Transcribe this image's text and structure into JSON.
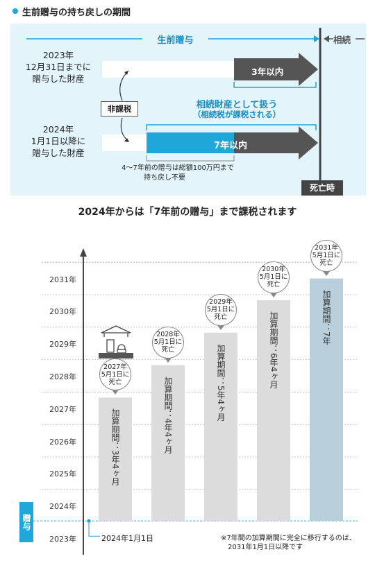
{
  "header": {
    "title": "生前贈与の持ち戻しの期間"
  },
  "diagram": {
    "top_label_gift": "生前贈与",
    "top_label_inherit": "相続",
    "row1_lines": [
      "2023年",
      "12月31日までに",
      "贈与した財産"
    ],
    "row2_lines": [
      "2024年",
      "1月1日以降に",
      "贈与した財産"
    ],
    "row1_arrow_label": "3年以内",
    "row2_arrow_label": "7年以内",
    "non_tax_label": "非課税",
    "inherit_line1": "相続財産として扱う",
    "inherit_line2": "（相続税が課税される）",
    "note_lines": [
      "4～7年前の贈与は総額100万円まで",
      "持ち戻し不要"
    ],
    "death_badge": "死亡時"
  },
  "subtitle": "2024年からは「7年前の贈与」まで課税されます",
  "chart_data": {
    "type": "bar",
    "y_ticks": [
      "2023年",
      "2024年",
      "2025年",
      "2026年",
      "2027年",
      "2028年",
      "2029年",
      "2030年",
      "2031年"
    ],
    "ylim": [
      2023,
      2031.5
    ],
    "start_value": 2024,
    "start_label": "2024年1月1日",
    "bars": [
      {
        "end": 2027.33,
        "bubble": "2027年\n5月1日に\n死亡",
        "label": "加算期間：3年4ヶ月",
        "color": "#dcdcdc"
      },
      {
        "end": 2028.33,
        "bubble": "2028年\n5月1日に\n死亡",
        "label": "加算期間：4年4ヶ月",
        "color": "#dcdcdc"
      },
      {
        "end": 2029.33,
        "bubble": "2029年\n5月1日に\n死亡",
        "label": "加算期間：5年4ヶ月",
        "color": "#dcdcdc"
      },
      {
        "end": 2030.33,
        "bubble": "2030年\n5月1日に\n死亡",
        "label": "加算期間：6年4ヶ月",
        "color": "#dcdcdc"
      },
      {
        "end": 2031.0,
        "bubble": "2031年\n5月1日に\n死亡",
        "label": "加算期間：7年",
        "color": "#b9cfdc"
      }
    ],
    "side_label": "贈与",
    "footnote_lines": [
      "※7年間の加算期間に完全に移行するのは、",
      "2031年1月1日以降です"
    ]
  }
}
